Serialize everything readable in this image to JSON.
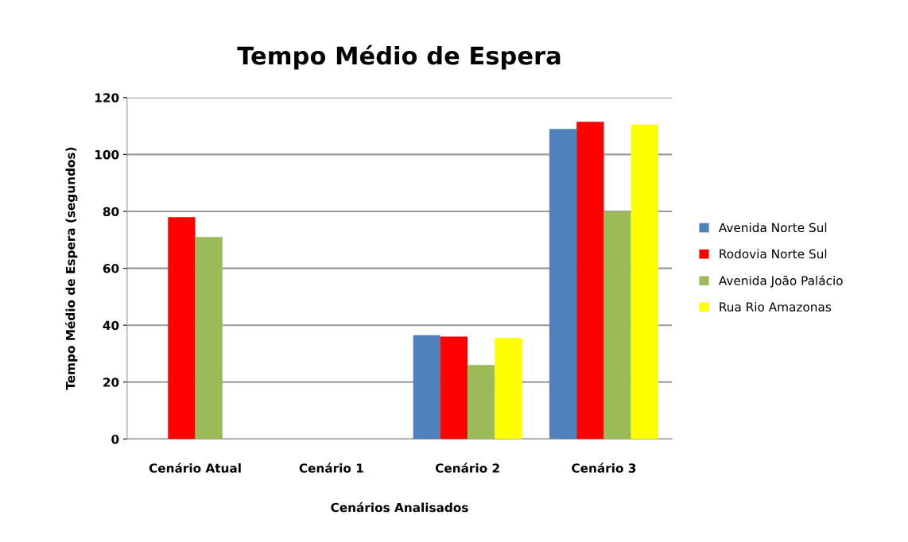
{
  "chart_data": {
    "type": "bar",
    "title": "Tempo Médio de Espera",
    "xlabel": "Cenários Analisados",
    "ylabel": "Tempo Médio de Espera (segundos)",
    "categories": [
      "Cenário Atual",
      "Cenário 1",
      "Cenário 2",
      "Cenário 3"
    ],
    "series": [
      {
        "name": "Avenida Norte Sul",
        "color": "#4f81bd",
        "values": [
          null,
          null,
          36.5,
          109
        ]
      },
      {
        "name": "Rodovia Norte Sul",
        "color": "#ff0000",
        "values": [
          78,
          null,
          36,
          111.5
        ]
      },
      {
        "name": "Avenida João Palácio",
        "color": "#9bbb59",
        "values": [
          71,
          null,
          26,
          80
        ]
      },
      {
        "name": "Rua Rio Amazonas",
        "color": "#ffff00",
        "values": [
          null,
          null,
          35.5,
          110.5
        ]
      }
    ],
    "ylim": [
      0,
      120
    ],
    "yticks": [
      0,
      20,
      40,
      60,
      80,
      100,
      120
    ],
    "grid": "y",
    "legend": "right"
  }
}
